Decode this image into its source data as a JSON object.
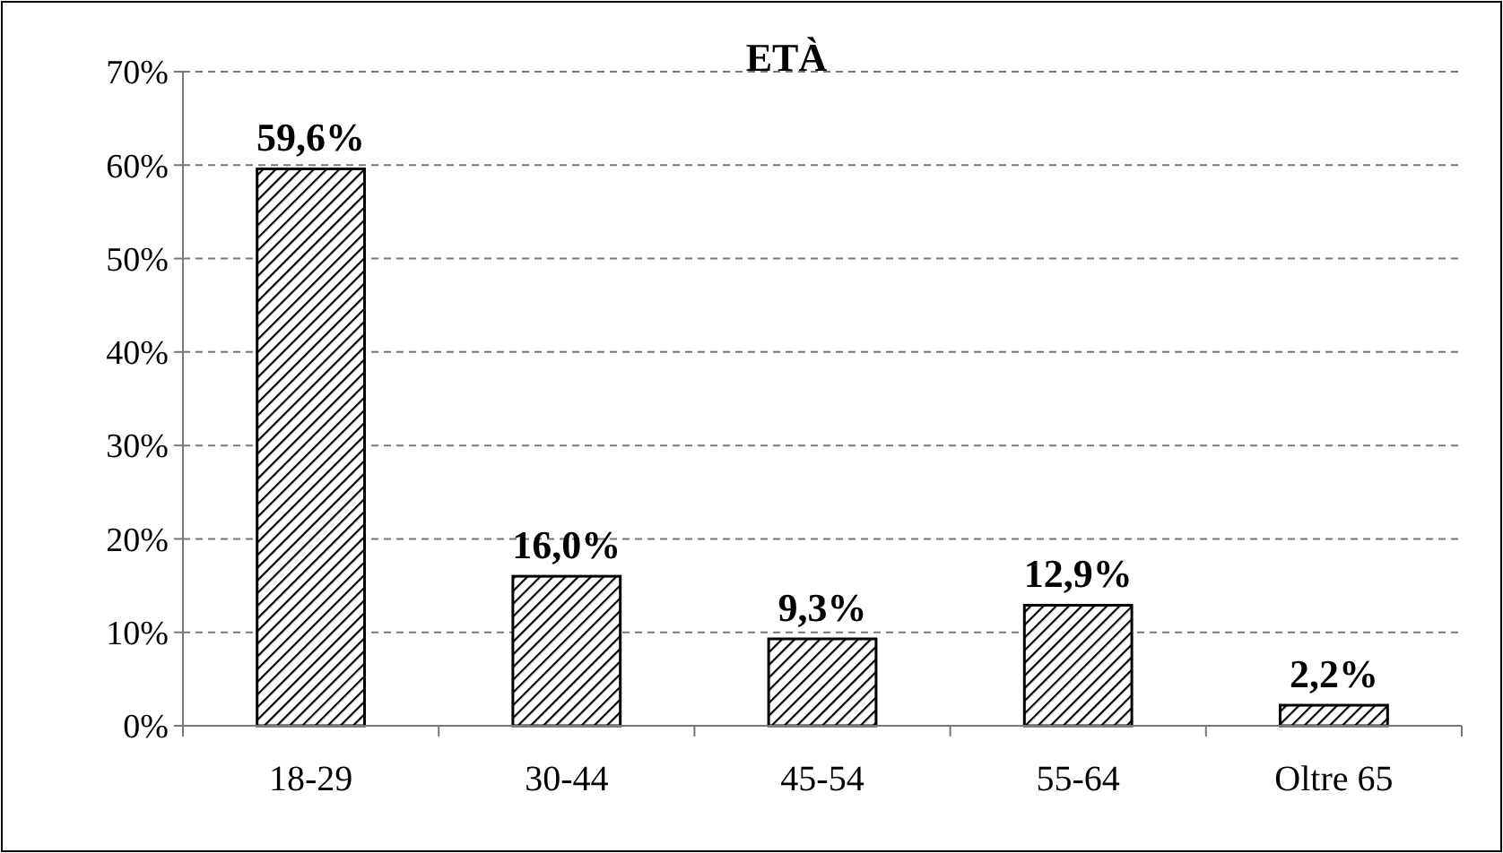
{
  "chart_data": {
    "type": "bar",
    "title": "ETÀ",
    "categories": [
      "18-29",
      "30-44",
      "45-54",
      "55-64",
      "Oltre 65"
    ],
    "values": [
      59.6,
      16.0,
      9.3,
      12.9,
      2.2
    ],
    "value_labels": [
      "59,6%",
      "16,0%",
      "9,3%",
      "12,9%",
      "2,2%"
    ],
    "color": "#000000",
    "ylim": [
      0,
      70
    ],
    "yticks": [
      {
        "value": 0,
        "label": "0%"
      },
      {
        "value": 10,
        "label": "10%"
      },
      {
        "value": 20,
        "label": "20%"
      },
      {
        "value": 30,
        "label": "30%"
      },
      {
        "value": 40,
        "label": "40%"
      },
      {
        "value": 50,
        "label": "50%"
      },
      {
        "value": 60,
        "label": "60%"
      },
      {
        "value": 70,
        "label": "70%"
      }
    ],
    "grid": "y"
  }
}
